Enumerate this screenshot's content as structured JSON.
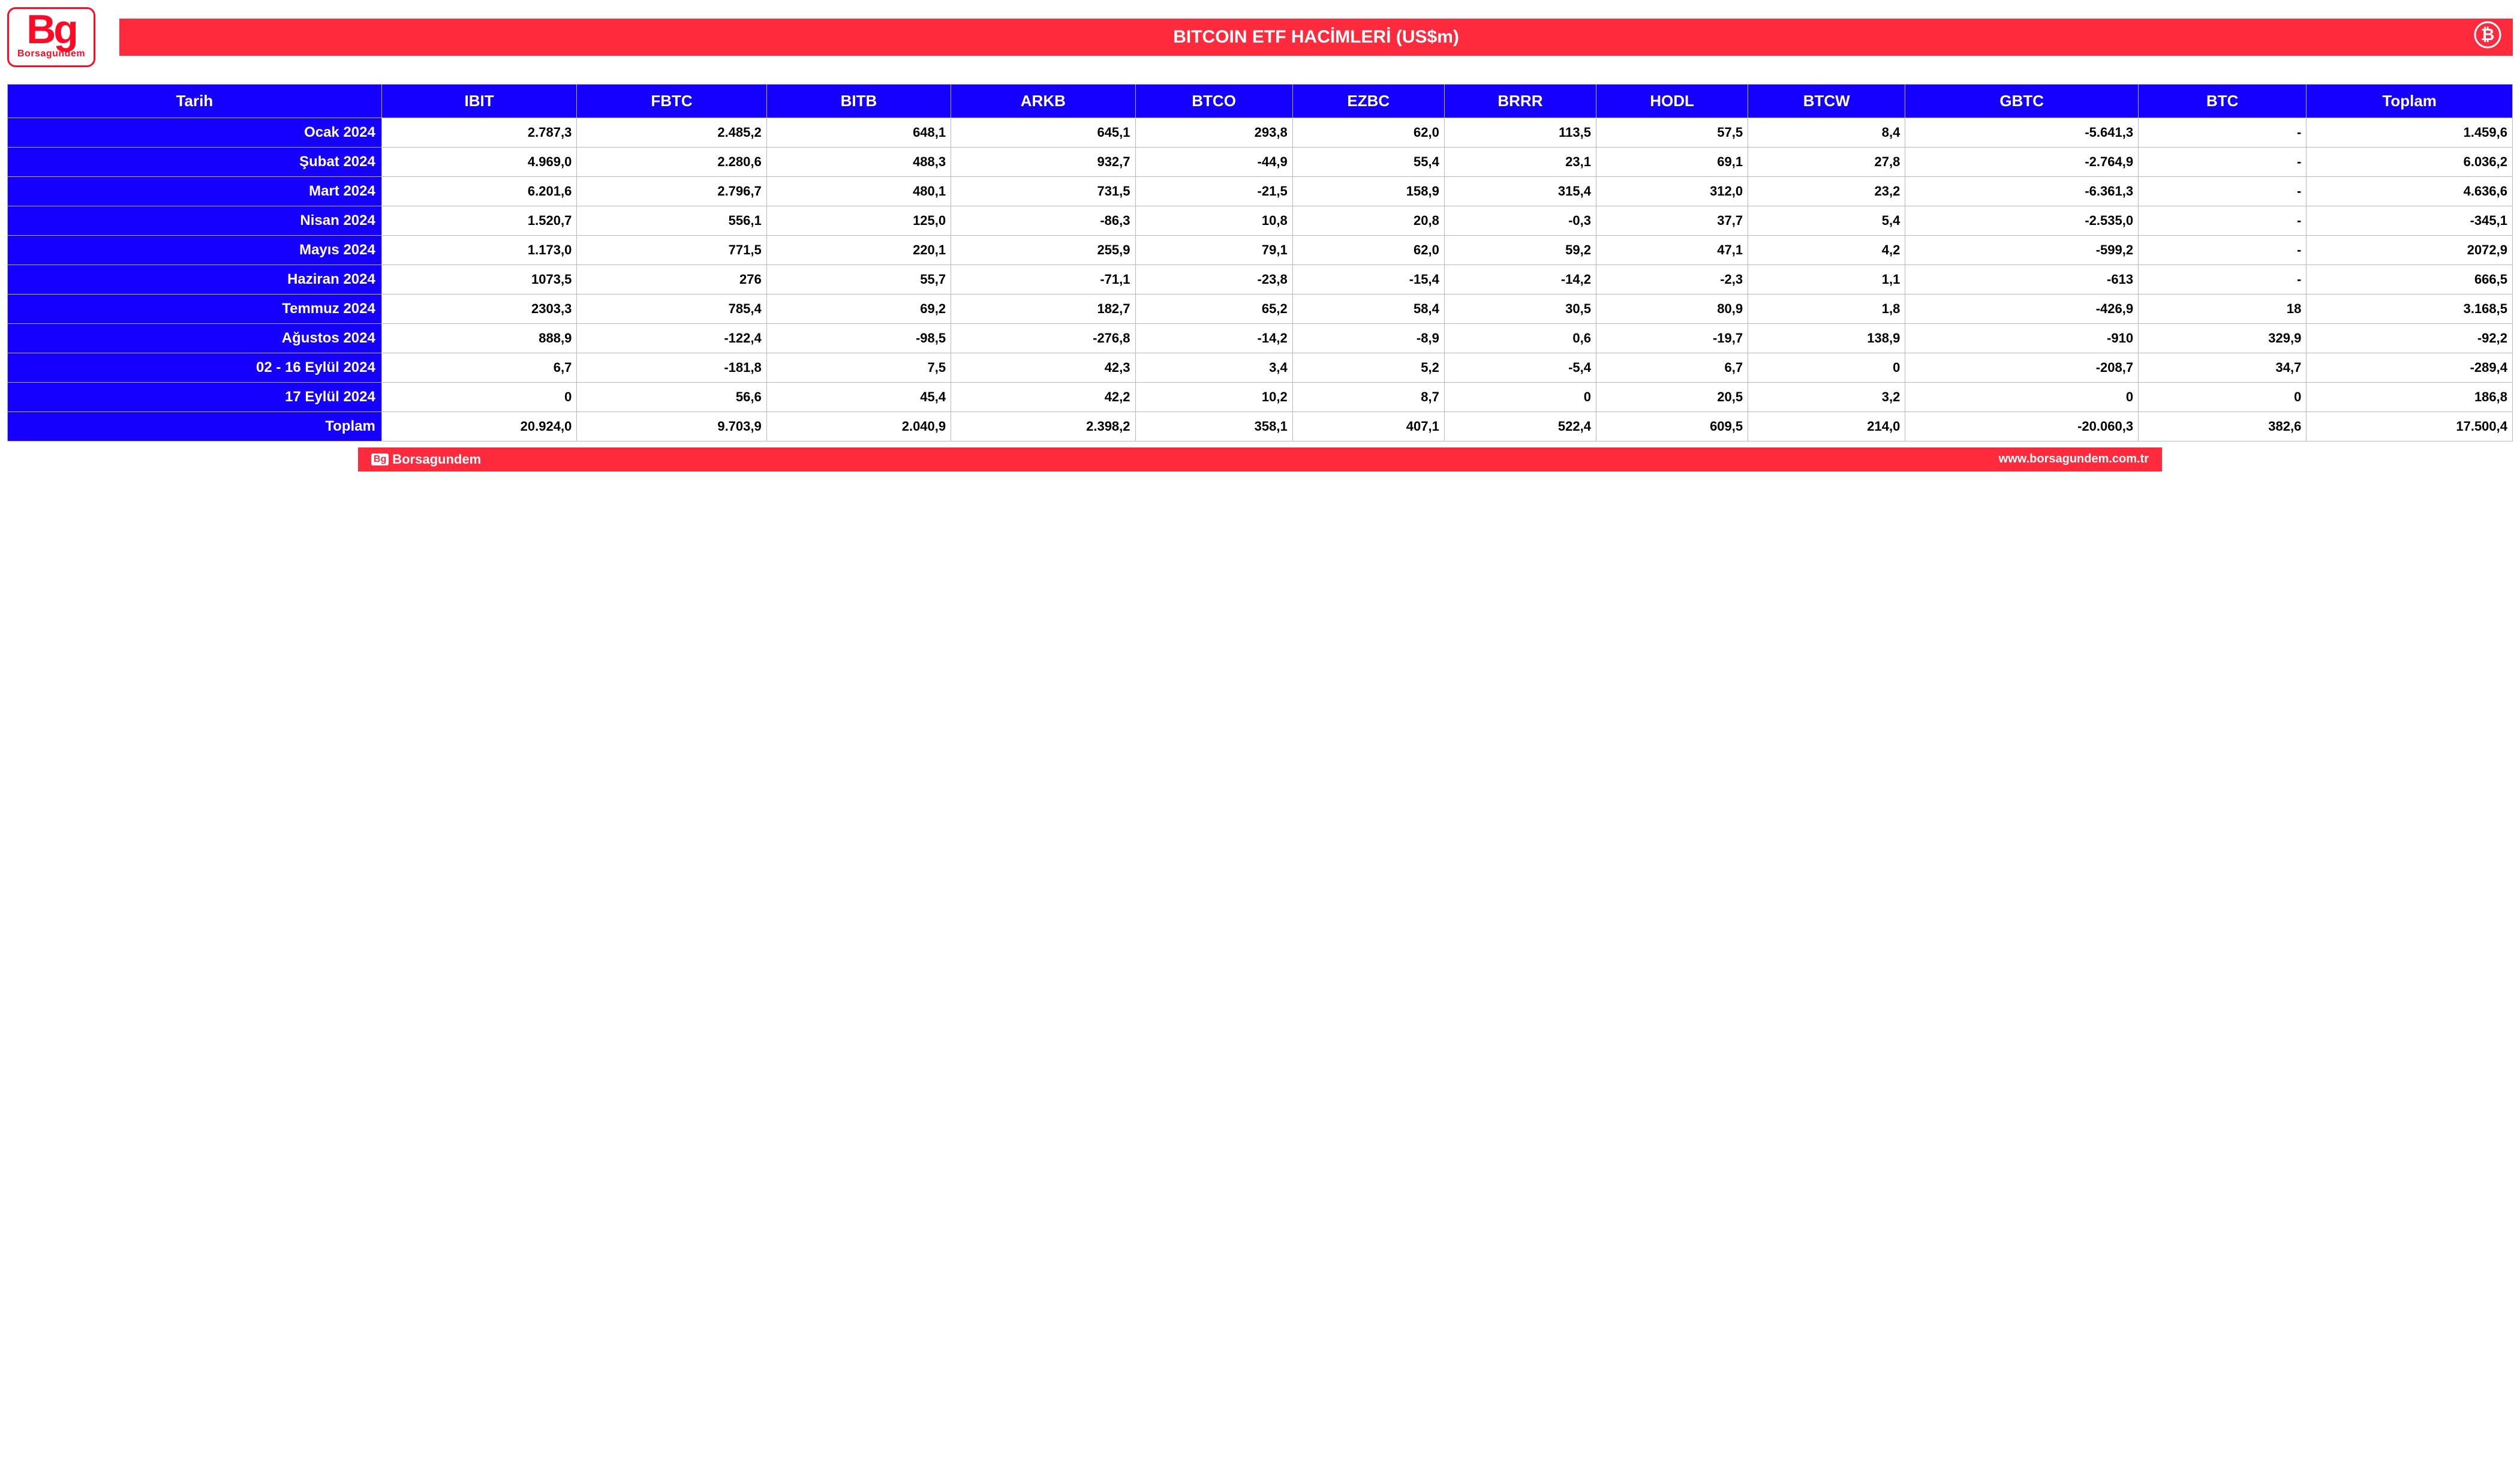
{
  "logo": {
    "main": "Bg",
    "sub": "Borsagundem"
  },
  "title": "BITCOIN ETF HACİMLERİ (US$m)",
  "icon_name": "bitcoin-icon",
  "colors": {
    "header_bg": "#1500ff",
    "header_text": "#ffffff",
    "titlebar_bg": "#ff2a3c",
    "titlebar_text": "#ffffff",
    "cell_text": "#000000",
    "cell_border": "#b9b9b9",
    "background": "#ffffff",
    "logo_color": "#ff0a24"
  },
  "typography": {
    "title_fontsize_pt": 22,
    "header_fontsize_pt": 19,
    "cell_fontsize_pt": 16,
    "rowhead_fontsize_pt": 18,
    "font_weight": "bold",
    "font_family": "Arial"
  },
  "table": {
    "type": "table",
    "columns": [
      "Tarih",
      "IBIT",
      "FBTC",
      "BITB",
      "ARKB",
      "BTCO",
      "EZBC",
      "BRRR",
      "HODL",
      "BTCW",
      "GBTC",
      "BTC",
      "Toplam"
    ],
    "col_widths_pct": [
      13.8,
      7.2,
      7.0,
      6.8,
      6.8,
      5.8,
      5.6,
      5.6,
      5.6,
      5.8,
      8.6,
      6.2,
      7.6
    ],
    "col_alignment": [
      "right",
      "right",
      "right",
      "right",
      "right",
      "right",
      "right",
      "right",
      "right",
      "right",
      "right",
      "right",
      "right"
    ],
    "rows": [
      [
        "Ocak 2024",
        "2.787,3",
        "2.485,2",
        "648,1",
        "645,1",
        "293,8",
        "62,0",
        "113,5",
        "57,5",
        "8,4",
        "-5.641,3",
        "-",
        "1.459,6"
      ],
      [
        "Şubat 2024",
        "4.969,0",
        "2.280,6",
        "488,3",
        "932,7",
        "-44,9",
        "55,4",
        "23,1",
        "69,1",
        "27,8",
        "-2.764,9",
        "-",
        "6.036,2"
      ],
      [
        "Mart 2024",
        "6.201,6",
        "2.796,7",
        "480,1",
        "731,5",
        "-21,5",
        "158,9",
        "315,4",
        "312,0",
        "23,2",
        "-6.361,3",
        "-",
        "4.636,6"
      ],
      [
        "Nisan 2024",
        "1.520,7",
        "556,1",
        "125,0",
        "-86,3",
        "10,8",
        "20,8",
        "-0,3",
        "37,7",
        "5,4",
        "-2.535,0",
        "-",
        "-345,1"
      ],
      [
        "Mayıs 2024",
        "1.173,0",
        "771,5",
        "220,1",
        "255,9",
        "79,1",
        "62,0",
        "59,2",
        "47,1",
        "4,2",
        "-599,2",
        "-",
        "2072,9"
      ],
      [
        "Haziran 2024",
        "1073,5",
        "276",
        "55,7",
        "-71,1",
        "-23,8",
        "-15,4",
        "-14,2",
        "-2,3",
        "1,1",
        "-613",
        "-",
        "666,5"
      ],
      [
        "Temmuz 2024",
        "2303,3",
        "785,4",
        "69,2",
        "182,7",
        "65,2",
        "58,4",
        "30,5",
        "80,9",
        "1,8",
        "-426,9",
        "18",
        "3.168,5"
      ],
      [
        "Ağustos 2024",
        "888,9",
        "-122,4",
        "-98,5",
        "-276,8",
        "-14,2",
        "-8,9",
        "0,6",
        "-19,7",
        "138,9",
        "-910",
        "329,9",
        "-92,2"
      ],
      [
        "02 - 16 Eylül 2024",
        "6,7",
        "-181,8",
        "7,5",
        "42,3",
        "3,4",
        "5,2",
        "-5,4",
        "6,7",
        "0",
        "-208,7",
        "34,7",
        "-289,4"
      ],
      [
        "17 Eylül 2024",
        "0",
        "56,6",
        "45,4",
        "42,2",
        "10,2",
        "8,7",
        "0",
        "20,5",
        "3,2",
        "0",
        "0",
        "186,8"
      ],
      [
        "Toplam",
        "20.924,0",
        "9.703,9",
        "2.040,9",
        "2.398,2",
        "358,1",
        "407,1",
        "522,4",
        "609,5",
        "214,0",
        "-20.060,3",
        "382,6",
        "17.500,4"
      ]
    ]
  },
  "footer": {
    "brand_badge": "Bg",
    "brand_text": "Borsagundem",
    "url": "www.borsagundem.com.tr"
  }
}
